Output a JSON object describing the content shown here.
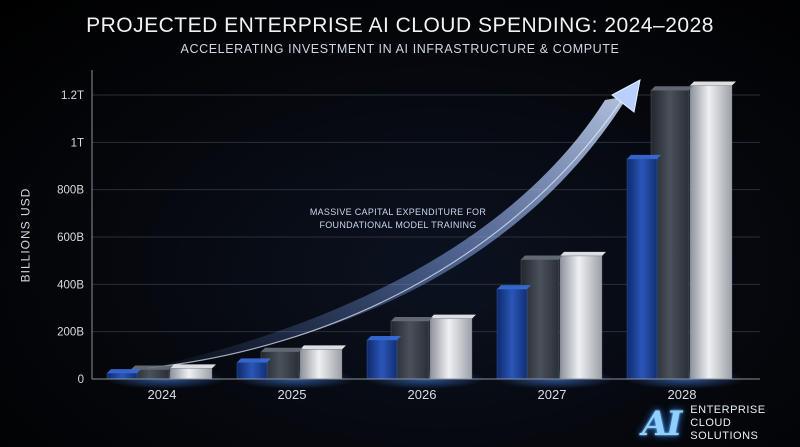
{
  "title": "PROJECTED ENTERPRISE AI CLOUD SPENDING: 2024–2028",
  "subtitle": "ACCELERATING INVESTMENT IN AI INFRASTRUCTURE & COMPUTE",
  "logo": {
    "mark": "AI",
    "line1": "ENTERPRISE",
    "line2": "CLOUD SOLUTIONS"
  },
  "colors": {
    "blue_bar": "#1c3f8f",
    "dark_bar": "#3b414a",
    "silver_bar": "#c9ccd1",
    "arrow": "#9fc2ff",
    "grid": "#2a2f38"
  },
  "chart_data": {
    "type": "bar",
    "title": "PROJECTED ENTERPRISE AI CLOUD SPENDING: 2024–2028",
    "subtitle": "ACCELERATING INVESTMENT IN AI INFRASTRUCTURE & COMPUTE",
    "ylabel": "BILLIONS USD",
    "xlabel": "",
    "categories": [
      "2024",
      "2025",
      "2026",
      "2027",
      "2028"
    ],
    "series": [
      {
        "values": [
          25,
          70,
          165,
          380,
          930
        ]
      },
      {
        "values": [
          40,
          115,
          245,
          505,
          1220
        ]
      },
      {
        "values": [
          45,
          125,
          255,
          520,
          1240
        ]
      }
    ],
    "ylim": [
      0,
      1200
    ],
    "yticks": [
      0,
      200,
      400,
      600,
      800,
      1000,
      1200
    ],
    "yticklabels": [
      "0",
      "200B",
      "400B",
      "600B",
      "800B",
      "1T",
      "1.2T"
    ],
    "grid": true,
    "annotation": {
      "line1": "MASSIVE CAPITAL EXPENDITURE FOR",
      "line2": "FOUNDATIONAL MODEL TRAINING"
    }
  }
}
